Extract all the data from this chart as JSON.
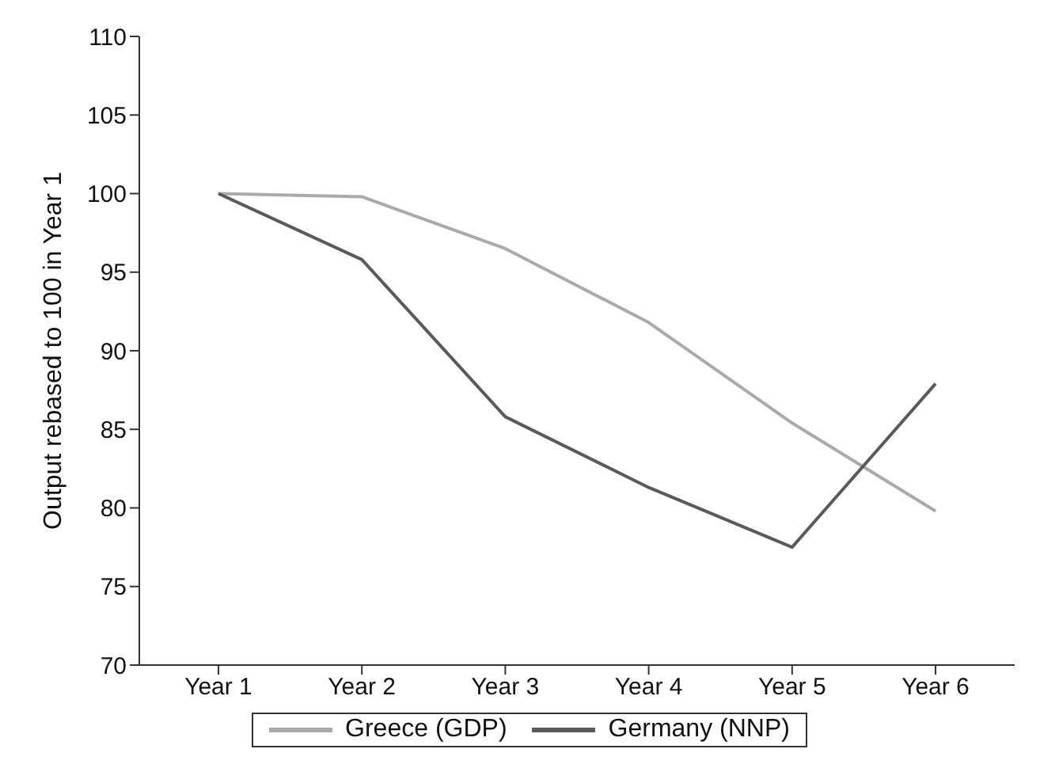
{
  "chart_data": {
    "type": "line",
    "ylabel": "Output rebased to 100 in Year 1",
    "categories": [
      "Year 1",
      "Year 2",
      "Year 3",
      "Year 4",
      "Year 5",
      "Year 6"
    ],
    "series": [
      {
        "name": "Greece (GDP)",
        "color": "#aaaaaa",
        "values": [
          100,
          99.8,
          96.5,
          91.8,
          85.4,
          79.8
        ]
      },
      {
        "name": "Germany (NNP)",
        "color": "#5a5a5a",
        "values": [
          100,
          95.8,
          85.8,
          81.3,
          77.5,
          87.9
        ]
      }
    ],
    "ylim": [
      70,
      110
    ],
    "yticks": [
      70,
      75,
      80,
      85,
      90,
      95,
      100,
      105,
      110
    ],
    "grid": false,
    "legend": "bottom",
    "marker": "none",
    "line_style": "solid"
  }
}
